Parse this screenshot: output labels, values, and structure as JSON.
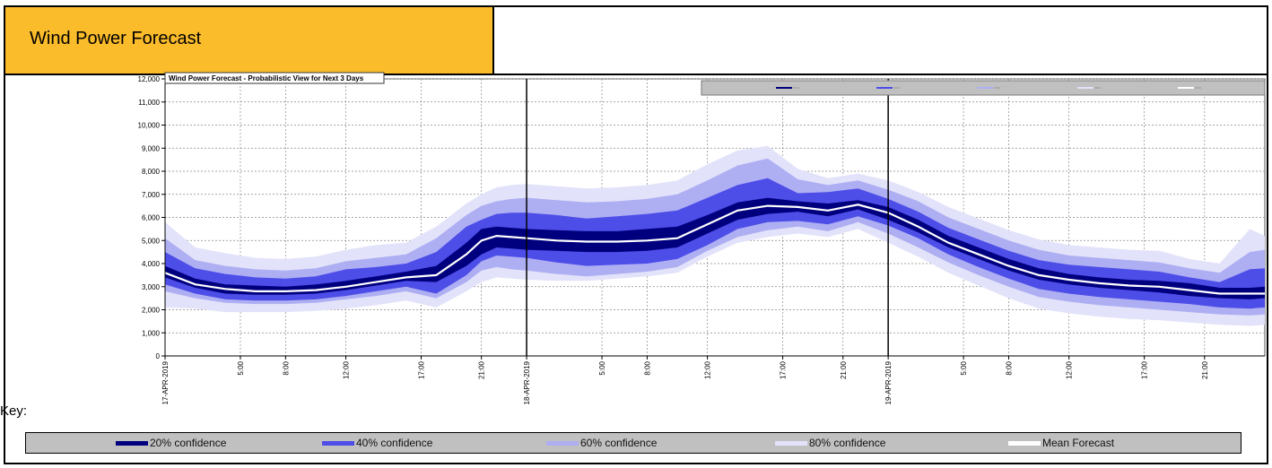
{
  "header": {
    "title": "Wind Power Forecast"
  },
  "key_label": "Key:",
  "colors": {
    "band20": "#00007f",
    "band40": "#4d4de8",
    "band60": "#aeaef3",
    "band80": "#e2e2fa",
    "mean": "#ffffff",
    "header_bg": "#fbbc2b",
    "legend_bg": "#c0c0c0"
  },
  "legend": [
    {
      "name": "20% confidence",
      "color": "#00007f"
    },
    {
      "name": "40% confidence",
      "color": "#4d4de8"
    },
    {
      "name": "60% confidence",
      "color": "#aeaef3"
    },
    {
      "name": "80% confidence",
      "color": "#e2e2fa"
    },
    {
      "name": "Mean Forecast",
      "color": "#ffffff"
    }
  ],
  "chart_data": {
    "type": "area",
    "title": "Wind Power Forecast - Probabilistic View for Next 3 Days",
    "xlabel": "",
    "ylabel": "",
    "ylim": [
      0,
      12000
    ],
    "yticks": [
      0,
      1000,
      2000,
      3000,
      4000,
      5000,
      6000,
      7000,
      8000,
      9000,
      10000,
      11000,
      12000
    ],
    "ytick_labels": [
      "0",
      "1,000",
      "2,000",
      "3,000",
      "4,000",
      "5,000",
      "6,000",
      "7,000",
      "8,000",
      "9,000",
      "10,000",
      "11,000",
      "12,000"
    ],
    "xlim": [
      0,
      73
    ],
    "x_unit": "hours from 17-APR-2019 00:00",
    "xticks": [
      {
        "x": 0,
        "label": "17-APR-2019",
        "day_boundary": true
      },
      {
        "x": 5,
        "label": "5:00"
      },
      {
        "x": 8,
        "label": "8:00"
      },
      {
        "x": 12,
        "label": "12:00"
      },
      {
        "x": 17,
        "label": "17:00"
      },
      {
        "x": 21,
        "label": "21:00"
      },
      {
        "x": 24,
        "label": "18-APR-2019",
        "day_boundary": true
      },
      {
        "x": 29,
        "label": "5:00"
      },
      {
        "x": 32,
        "label": "8:00"
      },
      {
        "x": 36,
        "label": "12:00"
      },
      {
        "x": 41,
        "label": "17:00"
      },
      {
        "x": 45,
        "label": "21:00"
      },
      {
        "x": 48,
        "label": "19-APR-2019",
        "day_boundary": true
      },
      {
        "x": 53,
        "label": "5:00"
      },
      {
        "x": 56,
        "label": "8:00"
      },
      {
        "x": 60,
        "label": "12:00"
      },
      {
        "x": 65,
        "label": "17:00"
      },
      {
        "x": 69,
        "label": "21:00"
      }
    ],
    "grid": true,
    "legend_position": "top-right",
    "x": [
      0,
      2,
      4,
      6,
      8,
      10,
      12,
      14,
      16,
      18,
      20,
      21,
      22,
      23,
      24,
      26,
      28,
      30,
      32,
      34,
      36,
      38,
      40,
      42,
      44,
      46,
      48,
      50,
      52,
      54,
      56,
      58,
      60,
      62,
      64,
      66,
      68,
      70,
      72,
      73
    ],
    "series": [
      {
        "name": "Mean Forecast",
        "values": [
          3600,
          3100,
          2900,
          2800,
          2800,
          2850,
          3000,
          3200,
          3400,
          3500,
          4400,
          5000,
          5200,
          5150,
          5100,
          5000,
          4950,
          4950,
          5000,
          5100,
          5700,
          6300,
          6500,
          6450,
          6300,
          6550,
          6200,
          5600,
          4900,
          4400,
          3900,
          3500,
          3300,
          3150,
          3050,
          3000,
          2850,
          2700,
          2700,
          2700
        ]
      },
      {
        "name": "20% confidence lower",
        "values": [
          3400,
          2950,
          2700,
          2650,
          2650,
          2700,
          2850,
          3050,
          3250,
          3200,
          3900,
          4400,
          4700,
          4650,
          4600,
          4550,
          4500,
          4500,
          4550,
          4700,
          5300,
          5900,
          6150,
          6250,
          6050,
          6350,
          5900,
          5350,
          4700,
          4200,
          3700,
          3300,
          3100,
          2950,
          2850,
          2750,
          2600,
          2500,
          2450,
          2500
        ]
      },
      {
        "name": "20% confidence upper",
        "values": [
          3900,
          3350,
          3100,
          3050,
          3000,
          3100,
          3250,
          3450,
          3650,
          3900,
          4900,
          5500,
          5600,
          5550,
          5500,
          5450,
          5400,
          5400,
          5500,
          5600,
          6100,
          6650,
          6850,
          6700,
          6600,
          6750,
          6450,
          5900,
          5200,
          4700,
          4200,
          3800,
          3550,
          3400,
          3300,
          3250,
          3150,
          2950,
          2950,
          3000
        ]
      },
      {
        "name": "40% confidence lower",
        "values": [
          3100,
          2700,
          2450,
          2400,
          2400,
          2450,
          2600,
          2800,
          3000,
          2700,
          3500,
          4100,
          4350,
          4300,
          4250,
          4050,
          3900,
          3950,
          4000,
          4200,
          4800,
          5500,
          5800,
          5850,
          5700,
          6050,
          5650,
          5100,
          4400,
          3850,
          3350,
          2900,
          2700,
          2550,
          2450,
          2350,
          2250,
          2100,
          2050,
          2100
        ]
      },
      {
        "name": "40% confidence upper",
        "values": [
          4500,
          3800,
          3550,
          3400,
          3350,
          3450,
          3750,
          3850,
          4000,
          4500,
          5600,
          5900,
          6150,
          6200,
          6200,
          6100,
          5950,
          6050,
          6150,
          6300,
          6850,
          7400,
          7700,
          7050,
          7100,
          7250,
          6800,
          6250,
          5550,
          5050,
          4550,
          4150,
          3950,
          3850,
          3750,
          3650,
          3400,
          3200,
          3750,
          3800
        ]
      },
      {
        "name": "60% confidence lower",
        "values": [
          2800,
          2500,
          2300,
          2250,
          2250,
          2300,
          2450,
          2600,
          2800,
          2500,
          3200,
          3700,
          3850,
          3750,
          3700,
          3550,
          3450,
          3550,
          3650,
          3850,
          4550,
          5150,
          5450,
          5600,
          5400,
          5800,
          5300,
          4700,
          4050,
          3500,
          3000,
          2550,
          2350,
          2200,
          2100,
          2000,
          1900,
          1800,
          1750,
          1800
        ]
      },
      {
        "name": "60% confidence upper",
        "values": [
          5100,
          4150,
          3900,
          3750,
          3700,
          3800,
          4100,
          4250,
          4400,
          5100,
          6100,
          6500,
          6700,
          6800,
          6850,
          6750,
          6650,
          6700,
          6800,
          7000,
          7600,
          8250,
          8550,
          7650,
          7400,
          7600,
          7200,
          6700,
          6000,
          5500,
          5000,
          4600,
          4350,
          4250,
          4150,
          4050,
          3800,
          3600,
          4500,
          4600
        ]
      },
      {
        "name": "80% confidence lower",
        "values": [
          2100,
          2050,
          1900,
          1900,
          1900,
          1950,
          2050,
          2200,
          2400,
          2100,
          2800,
          3200,
          3400,
          3350,
          3300,
          3250,
          3250,
          3350,
          3450,
          3600,
          4300,
          4900,
          5150,
          5300,
          5150,
          5500,
          4900,
          4300,
          3600,
          3050,
          2500,
          2050,
          1850,
          1700,
          1600,
          1550,
          1450,
          1350,
          1300,
          1350
        ]
      },
      {
        "name": "80% confidence upper",
        "values": [
          5800,
          4700,
          4450,
          4250,
          4200,
          4300,
          4600,
          4800,
          4900,
          5600,
          6600,
          7000,
          7300,
          7400,
          7450,
          7350,
          7250,
          7300,
          7400,
          7600,
          8300,
          8900,
          9100,
          8100,
          7700,
          7900,
          7600,
          7100,
          6450,
          5950,
          5450,
          5050,
          4800,
          4700,
          4600,
          4550,
          4200,
          4000,
          5500,
          5200
        ]
      }
    ]
  }
}
